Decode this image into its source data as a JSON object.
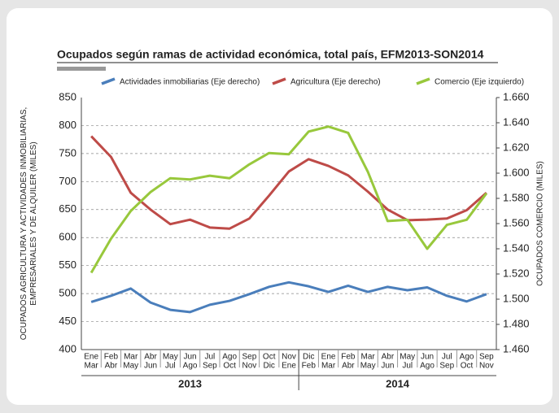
{
  "chart_data": {
    "type": "line",
    "title": "Ocupados según ramas de actividad económica, total país, EFM2013-SON2014",
    "ylabel": [
      "OCUPADOS AGRICULTURA Y ACTIVIDADES INMOBILIARIAS,",
      "EMPRESARIALES Y DE ALQUILER (MILES)"
    ],
    "y2label": "OCUPADOS COMERCIO (MILES)",
    "categories": [
      [
        "Ene",
        "Mar"
      ],
      [
        "Feb",
        "Abr"
      ],
      [
        "Mar",
        "May"
      ],
      [
        "Abr",
        "Jun"
      ],
      [
        "May",
        "Jul"
      ],
      [
        "Jun",
        "Ago"
      ],
      [
        "Jul",
        "Sep"
      ],
      [
        "Ago",
        "Oct"
      ],
      [
        "Sep",
        "Nov"
      ],
      [
        "Oct",
        "Dic"
      ],
      [
        "Nov",
        "Ene"
      ],
      [
        "Dic",
        "Feb"
      ],
      [
        "Ene",
        "Mar"
      ],
      [
        "Feb",
        "Abr"
      ],
      [
        "Mar",
        "May"
      ],
      [
        "Abr",
        "Jun"
      ],
      [
        "May",
        "Jul"
      ],
      [
        "Jun",
        "Ago"
      ],
      [
        "Jul",
        "Sep"
      ],
      [
        "Ago",
        "Oct"
      ],
      [
        "Sep",
        "Nov"
      ]
    ],
    "years": [
      {
        "label": "2013",
        "count": 11
      },
      {
        "label": "2014",
        "count": 10
      }
    ],
    "series": [
      {
        "name": "Actividades inmobiliarias (Eje derecho)",
        "color": "#4a7ebb",
        "values": [
          485,
          496,
          509,
          484,
          471,
          467,
          480,
          487,
          499,
          512,
          520,
          513,
          503,
          514,
          503,
          512,
          506,
          511,
          496,
          486,
          499
        ]
      },
      {
        "name": "Agricultura (Eje derecho)",
        "color": "#be4b48",
        "values": [
          781,
          744,
          680,
          650,
          624,
          632,
          618,
          616,
          634,
          675,
          718,
          740,
          728,
          711,
          682,
          650,
          631,
          632,
          634,
          649,
          680
        ]
      },
      {
        "name": "Comercio (Eje izquierdo)",
        "color": "#98c83c",
        "axis": "y2",
        "values": [
          1521,
          1548,
          1570,
          1585,
          1596,
          1595,
          1598,
          1596,
          1607,
          1616,
          1615,
          1633,
          1637,
          1632,
          1601,
          1562,
          1563,
          1540,
          1559,
          1563,
          1584
        ]
      }
    ],
    "ylim": [
      400,
      850
    ],
    "yticks": [
      400,
      450,
      500,
      550,
      600,
      650,
      700,
      750,
      800,
      850
    ],
    "y2lim": [
      1460,
      1660
    ],
    "y2ticks": [
      {
        "value": 1460,
        "label": "1.460"
      },
      {
        "value": 1480,
        "label": "1.480"
      },
      {
        "value": 1500,
        "label": "1.500"
      },
      {
        "value": 1520,
        "label": "1.520"
      },
      {
        "value": 1540,
        "label": "1.540"
      },
      {
        "value": 1560,
        "label": "1.560"
      },
      {
        "value": 1580,
        "label": "1.580"
      },
      {
        "value": 1600,
        "label": "1.600"
      },
      {
        "value": 1620,
        "label": "1.620"
      },
      {
        "value": 1640,
        "label": "1.640"
      },
      {
        "value": 1660,
        "label": "1.660"
      }
    ],
    "grid": true
  }
}
